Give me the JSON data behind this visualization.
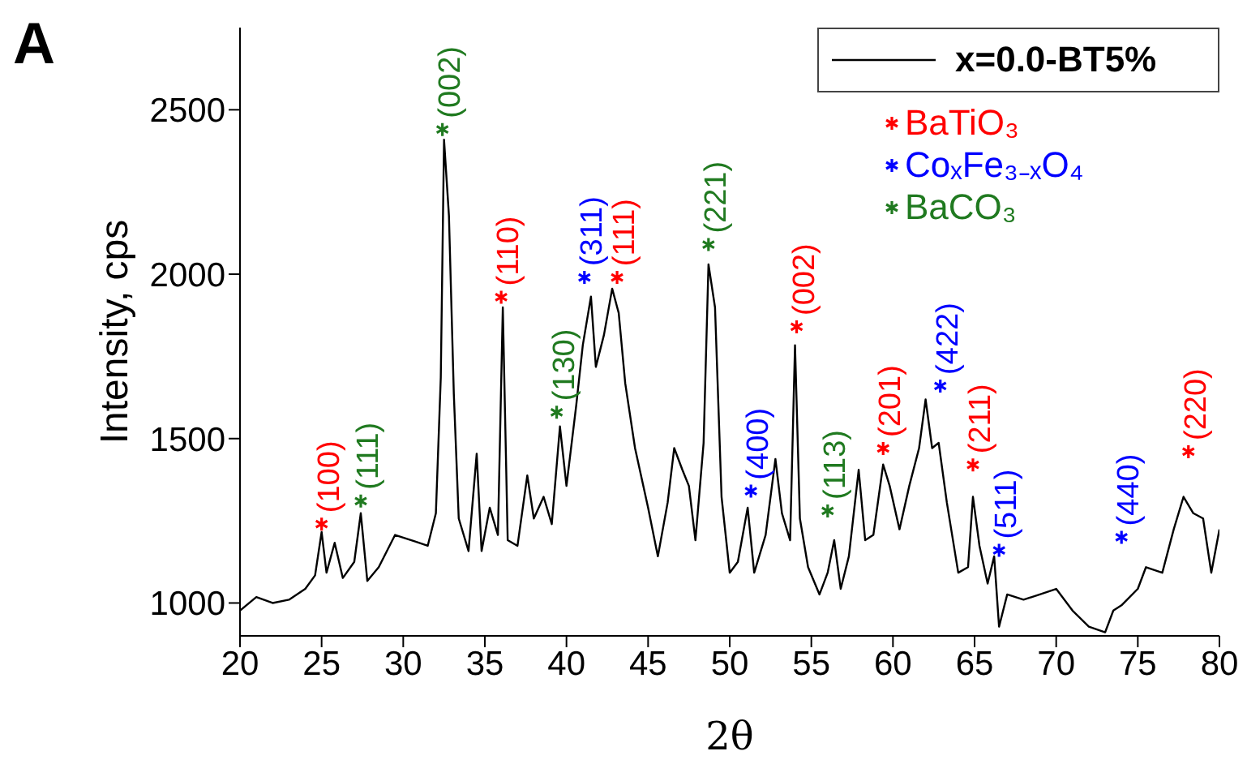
{
  "chart_data": {
    "type": "line",
    "title": "A",
    "xlabel": "2θ",
    "ylabel": "Intensity, cps",
    "xlim": [
      20,
      80
    ],
    "xticks": [
      20,
      25,
      30,
      35,
      40,
      45,
      50,
      55,
      60,
      65,
      70,
      75,
      80
    ],
    "ylim": [
      900,
      2750
    ],
    "yticks": [
      1000,
      1500,
      2000,
      2500
    ],
    "grid": false,
    "legend": "top right",
    "line_style": "solid",
    "series": [
      {
        "name": "x=0.0-BT5%",
        "color": "#000000",
        "x": [
          20,
          21,
          22,
          23,
          24,
          24.6,
          25,
          25.3,
          25.8,
          26.3,
          27,
          27.4,
          27.8,
          28.5,
          29.5,
          30.5,
          31.5,
          32,
          32.3,
          32.5,
          32.8,
          33.1,
          33.4,
          34,
          34.5,
          34.8,
          35.3,
          35.8,
          36.1,
          36.4,
          37,
          37.6,
          38,
          38.6,
          39.1,
          39.6,
          40,
          40.6,
          41,
          41.5,
          41.8,
          42.3,
          42.8,
          43.2,
          43.6,
          44.2,
          45,
          45.6,
          46.2,
          46.6,
          47.1,
          47.5,
          47.9,
          48.4,
          48.7,
          49.1,
          49.5,
          50,
          50.5,
          51.1,
          51.5,
          52.2,
          52.8,
          53.2,
          53.7,
          54,
          54.3,
          54.8,
          55.5,
          56,
          56.4,
          56.8,
          57.3,
          57.9,
          58.3,
          58.8,
          59.4,
          59.8,
          60.4,
          61,
          61.6,
          62,
          62.4,
          62.8,
          63.3,
          64,
          64.6,
          64.9,
          65.3,
          65.8,
          66.2,
          66.5,
          67,
          68,
          69,
          70,
          71,
          72,
          73,
          73.5,
          74,
          75,
          75.5,
          76.5,
          77.2,
          77.8,
          78.4,
          79,
          79.5,
          80
        ],
        "values": [
          977,
          1018,
          1000,
          1010,
          1043,
          1084,
          1216,
          1092,
          1183,
          1076,
          1125,
          1273,
          1067,
          1109,
          1207,
          1191,
          1174,
          1273,
          1685,
          2409,
          2178,
          1635,
          1257,
          1158,
          1454,
          1158,
          1290,
          1207,
          1899,
          1191,
          1174,
          1388,
          1257,
          1323,
          1240,
          1537,
          1356,
          1602,
          1784,
          1932,
          1718,
          1816,
          1956,
          1882,
          1668,
          1471,
          1290,
          1142,
          1306,
          1471,
          1405,
          1356,
          1191,
          1487,
          2030,
          1899,
          1323,
          1092,
          1125,
          1290,
          1092,
          1207,
          1438,
          1273,
          1191,
          1784,
          1257,
          1109,
          1026,
          1092,
          1191,
          1043,
          1142,
          1405,
          1191,
          1207,
          1421,
          1356,
          1224,
          1356,
          1471,
          1619,
          1471,
          1487,
          1306,
          1092,
          1109,
          1323,
          1174,
          1059,
          1142,
          928,
          1026,
          1010,
          1026,
          1043,
          977,
          928,
          911,
          977,
          993,
          1043,
          1109,
          1092,
          1224,
          1323,
          1273,
          1257,
          1092,
          1224
        ]
      },
      {
        "name": "BaTiO₃",
        "type": "scatter",
        "color": "#ff0000",
        "marker": "cross",
        "x": [
          25,
          36,
          43.1,
          54.1,
          59.4,
          64.9,
          78.1
        ],
        "values": [
          1240,
          1930,
          1990,
          1840,
          1470,
          1420,
          1460
        ]
      },
      {
        "name": "CoₓFe₃₋ₓO₄",
        "type": "scatter",
        "color": "#0000ff",
        "marker": "cross",
        "x": [
          41.1,
          51.3,
          62.9,
          66.5,
          74
        ],
        "values": [
          1990,
          1340,
          1660,
          1160,
          1200
        ]
      },
      {
        "name": "BaCO₃",
        "type": "scatter",
        "color": "#207a20",
        "marker": "cross",
        "x": [
          27.4,
          32.4,
          39.4,
          48.7,
          56
        ],
        "values": [
          1310,
          2440,
          1580,
          2090,
          1280
        ]
      }
    ],
    "annotations": [
      {
        "text": "(100)",
        "x": 25,
        "y": 1240
      },
      {
        "text": "(110)",
        "x": 36,
        "y": 1930
      },
      {
        "text": "(111)",
        "x": 43.1,
        "y": 1990
      },
      {
        "text": "(002)",
        "x": 54.1,
        "y": 1840
      },
      {
        "text": "(201)",
        "x": 59.4,
        "y": 1470
      },
      {
        "text": "(211)",
        "x": 64.9,
        "y": 1420
      },
      {
        "text": "(220)",
        "x": 78.1,
        "y": 1460
      },
      {
        "text": "(311)",
        "x": 41.1,
        "y": 1990
      },
      {
        "text": "(400)",
        "x": 51.3,
        "y": 1340
      },
      {
        "text": "(422)",
        "x": 62.9,
        "y": 1660
      },
      {
        "text": "(511)",
        "x": 66.5,
        "y": 1160
      },
      {
        "text": "(440)",
        "x": 74,
        "y": 1200
      },
      {
        "text": "(111)",
        "x": 27.4,
        "y": 1310
      },
      {
        "text": "(002)",
        "x": 32.4,
        "y": 2440
      },
      {
        "text": "(130)",
        "x": 39.4,
        "y": 1580
      },
      {
        "text": "(221)",
        "x": 48.7,
        "y": 2090
      },
      {
        "text": "(113)",
        "x": 56,
        "y": 1280
      }
    ]
  }
}
